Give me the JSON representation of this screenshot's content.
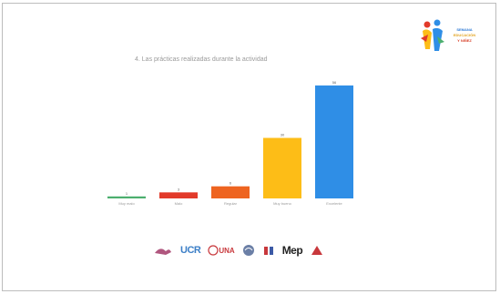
{
  "chart_data": {
    "type": "bar",
    "title": "4. Las prácticas realizadas durante la actividad",
    "categories": [
      "Muy malo",
      "Malo",
      "Regular",
      "Muy bueno",
      "Excelente"
    ],
    "values": [
      1,
      3,
      6,
      30,
      56
    ],
    "value_labels": [
      "1",
      "3",
      "6",
      "30",
      "56"
    ],
    "ylim": [
      0,
      60
    ],
    "colors": [
      "#4caf6e",
      "#e23a2a",
      "#ee6420",
      "#fdbd17",
      "#2f8ee6"
    ],
    "grid": false,
    "legend": "none"
  },
  "header_logo": {
    "lines": [
      "SEMANA",
      "EDUCACIÓN",
      "Y NIÑEZ"
    ],
    "colors": [
      "#2f7bd6",
      "#e2a21c",
      "#d8432c"
    ]
  },
  "footer_logos": {
    "ucr": "UCR",
    "una": "UNA",
    "mep": "Mep",
    "icons": [
      "institution-1-logo",
      "ucr-logo",
      "una-logo",
      "institution-4-logo",
      "institution-5-logo",
      "mep-logo",
      "institution-7-logo"
    ]
  }
}
